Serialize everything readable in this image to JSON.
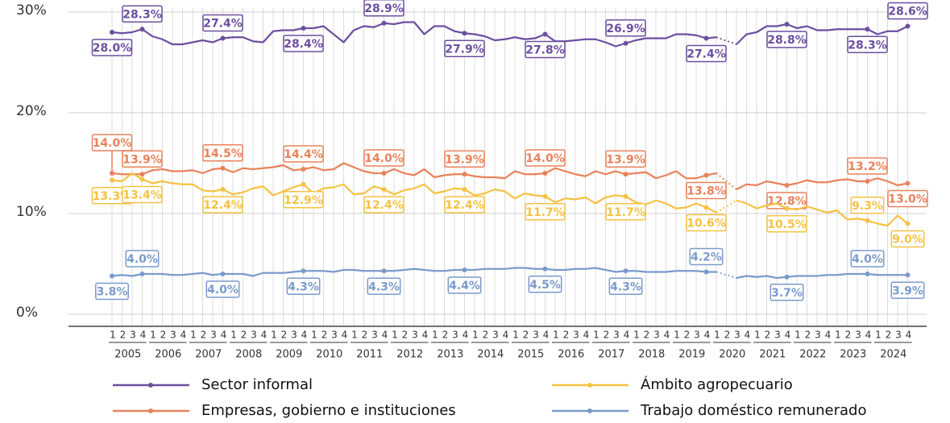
{
  "chart_data": {
    "type": "line",
    "years": [
      "2005",
      "2006",
      "2007",
      "2008",
      "2009",
      "2010",
      "2011",
      "2012",
      "2013",
      "2014",
      "2015",
      "2016",
      "2017",
      "2018",
      "2019",
      "2020",
      "2021",
      "2022",
      "2023",
      "2024"
    ],
    "quarters": [
      "1",
      "2",
      "3",
      "4"
    ],
    "ylim": [
      -1,
      31
    ],
    "yticks": [
      {
        "value": 0,
        "label": "0%"
      },
      {
        "value": 10,
        "label": "10%"
      },
      {
        "value": 20,
        "label": "20%"
      },
      {
        "value": 30,
        "label": "30%"
      }
    ],
    "grid": true,
    "series": [
      {
        "name": "Sector informal",
        "color": "#6b4fa0",
        "values": [
          28.0,
          27.9,
          28.0,
          28.3,
          27.6,
          27.3,
          26.8,
          26.8,
          27.0,
          27.2,
          27.0,
          27.4,
          27.5,
          27.5,
          27.1,
          27.0,
          28.1,
          28.2,
          28.2,
          28.4,
          28.4,
          28.6,
          27.8,
          27.0,
          28.2,
          28.6,
          28.5,
          28.9,
          28.8,
          29.0,
          29.0,
          27.8,
          28.6,
          28.6,
          28.1,
          27.9,
          27.8,
          27.6,
          27.2,
          27.3,
          27.5,
          27.3,
          27.4,
          27.8,
          27.1,
          27.1,
          27.2,
          27.3,
          27.3,
          27.0,
          26.6,
          26.9,
          27.2,
          27.4,
          27.4,
          27.4,
          27.8,
          27.8,
          27.7,
          27.4,
          27.5,
          null,
          26.8,
          27.8,
          28.0,
          28.6,
          28.6,
          28.8,
          28.4,
          28.6,
          28.2,
          28.2,
          28.3,
          28.3,
          28.3,
          28.3,
          27.8,
          28.1,
          28.1,
          28.6
        ],
        "value_labels": [
          "28.0%",
          null,
          null,
          "28.3%",
          null,
          null,
          null,
          null,
          null,
          null,
          null,
          "27.4%",
          null,
          null,
          null,
          null,
          null,
          null,
          null,
          "28.4%",
          null,
          null,
          null,
          null,
          null,
          null,
          null,
          "28.9%",
          null,
          null,
          null,
          null,
          null,
          null,
          null,
          "27.9%",
          null,
          null,
          null,
          null,
          null,
          null,
          null,
          "27.8%",
          null,
          null,
          null,
          null,
          null,
          null,
          null,
          "26.9%",
          null,
          null,
          null,
          null,
          null,
          null,
          null,
          "27.4%",
          null,
          null,
          null,
          null,
          null,
          null,
          null,
          "28.8%",
          null,
          null,
          null,
          null,
          null,
          null,
          null,
          "28.3%",
          null,
          null,
          null,
          "28.6%"
        ]
      },
      {
        "name": "Empresas, gobierno e instituciones",
        "color": "#e8825a",
        "values": [
          14.0,
          13.9,
          13.9,
          13.9,
          14.3,
          14.4,
          14.2,
          14.2,
          14.3,
          14.0,
          14.4,
          14.5,
          14.1,
          14.5,
          14.4,
          14.5,
          14.6,
          14.8,
          14.3,
          14.4,
          14.6,
          14.3,
          14.4,
          15.0,
          14.6,
          14.2,
          14.0,
          14.0,
          14.4,
          14.0,
          13.8,
          14.4,
          13.6,
          13.8,
          13.9,
          13.9,
          13.7,
          13.6,
          13.6,
          13.5,
          14.2,
          13.9,
          13.9,
          14.0,
          14.5,
          14.2,
          13.9,
          13.7,
          14.2,
          13.9,
          14.2,
          13.9,
          14.0,
          14.1,
          13.5,
          13.8,
          14.2,
          13.5,
          13.5,
          13.8,
          14.0,
          null,
          12.4,
          12.9,
          12.8,
          13.2,
          13.0,
          12.8,
          13.0,
          13.3,
          13.1,
          13.1,
          13.3,
          13.4,
          13.2,
          13.2,
          13.5,
          13.2,
          12.8,
          13.0
        ],
        "value_labels": [
          "14.0%",
          null,
          null,
          "13.9%",
          null,
          null,
          null,
          null,
          null,
          null,
          null,
          "14.5%",
          null,
          null,
          null,
          null,
          null,
          null,
          null,
          "14.4%",
          null,
          null,
          null,
          null,
          null,
          null,
          null,
          "14.0%",
          null,
          null,
          null,
          null,
          null,
          null,
          null,
          "13.9%",
          null,
          null,
          null,
          null,
          null,
          null,
          null,
          "14.0%",
          null,
          null,
          null,
          null,
          null,
          null,
          null,
          "13.9%",
          null,
          null,
          null,
          null,
          null,
          null,
          null,
          "13.8%",
          null,
          null,
          null,
          null,
          null,
          null,
          null,
          "12.8%",
          null,
          null,
          null,
          null,
          null,
          null,
          null,
          "13.2%",
          null,
          null,
          null,
          "13.0%"
        ]
      },
      {
        "name": "Ámbito agropecuario",
        "color": "#f5c242",
        "values": [
          13.3,
          13.2,
          14.0,
          13.4,
          13.0,
          13.2,
          13.0,
          12.9,
          12.9,
          12.3,
          12.2,
          12.4,
          11.9,
          12.1,
          12.5,
          12.7,
          11.8,
          12.2,
          12.6,
          12.9,
          12.0,
          12.5,
          12.6,
          12.9,
          11.9,
          12.0,
          12.7,
          12.4,
          11.9,
          12.3,
          12.5,
          12.9,
          12.0,
          12.2,
          12.5,
          12.4,
          11.8,
          12.0,
          12.4,
          12.2,
          11.5,
          12.0,
          11.8,
          11.7,
          11.1,
          11.5,
          11.4,
          11.6,
          11.0,
          11.6,
          11.8,
          11.7,
          11.1,
          10.9,
          11.3,
          11.0,
          10.5,
          10.6,
          11.0,
          10.6,
          10.1,
          null,
          11.3,
          11.0,
          10.5,
          10.8,
          11.0,
          10.5,
          10.4,
          10.7,
          10.4,
          10.1,
          10.3,
          9.4,
          9.5,
          9.3,
          9.0,
          8.8,
          9.8,
          9.0
        ],
        "value_labels": [
          "13.3%",
          null,
          null,
          "13.4%",
          null,
          null,
          null,
          null,
          null,
          null,
          null,
          "12.4%",
          null,
          null,
          null,
          null,
          null,
          null,
          null,
          "12.9%",
          null,
          null,
          null,
          null,
          null,
          null,
          null,
          "12.4%",
          null,
          null,
          null,
          null,
          null,
          null,
          null,
          "12.4%",
          null,
          null,
          null,
          null,
          null,
          null,
          null,
          "11.7%",
          null,
          null,
          null,
          null,
          null,
          null,
          null,
          "11.7%",
          null,
          null,
          null,
          null,
          null,
          null,
          null,
          "10.6%",
          null,
          null,
          null,
          null,
          null,
          null,
          null,
          "10.5%",
          null,
          null,
          null,
          null,
          null,
          null,
          null,
          "9.3%",
          null,
          null,
          null,
          "9.0%"
        ]
      },
      {
        "name": "Trabajo doméstico remunerado",
        "color": "#7b9acc",
        "values": [
          3.8,
          3.9,
          3.8,
          4.0,
          4.0,
          4.0,
          3.9,
          3.9,
          4.0,
          4.1,
          3.9,
          4.0,
          4.0,
          4.0,
          3.8,
          4.1,
          4.1,
          4.1,
          4.2,
          4.3,
          4.3,
          4.3,
          4.2,
          4.4,
          4.4,
          4.3,
          4.3,
          4.3,
          4.3,
          4.4,
          4.5,
          4.4,
          4.3,
          4.3,
          4.4,
          4.4,
          4.4,
          4.5,
          4.5,
          4.5,
          4.6,
          4.6,
          4.5,
          4.5,
          4.4,
          4.4,
          4.5,
          4.5,
          4.6,
          4.4,
          4.2,
          4.3,
          4.3,
          4.2,
          4.2,
          4.2,
          4.3,
          4.3,
          4.3,
          4.2,
          4.2,
          null,
          3.6,
          3.8,
          3.7,
          3.8,
          3.6,
          3.7,
          3.8,
          3.8,
          3.8,
          3.9,
          3.9,
          4.0,
          4.0,
          4.0,
          3.9,
          3.9,
          3.9,
          3.9
        ],
        "value_labels": [
          "3.8%",
          null,
          null,
          "4.0%",
          null,
          null,
          null,
          null,
          null,
          null,
          null,
          "4.0%",
          null,
          null,
          null,
          null,
          null,
          null,
          null,
          "4.3%",
          null,
          null,
          null,
          null,
          null,
          null,
          null,
          "4.3%",
          null,
          null,
          null,
          null,
          null,
          null,
          null,
          "4.4%",
          null,
          null,
          null,
          null,
          null,
          null,
          null,
          "4.5%",
          null,
          null,
          null,
          null,
          null,
          null,
          null,
          "4.3%",
          null,
          null,
          null,
          null,
          null,
          null,
          null,
          "4.2%",
          null,
          null,
          null,
          null,
          null,
          null,
          null,
          "3.7%",
          null,
          null,
          null,
          null,
          null,
          null,
          null,
          "4.0%",
          null,
          null,
          null,
          "3.9%"
        ]
      }
    ]
  }
}
